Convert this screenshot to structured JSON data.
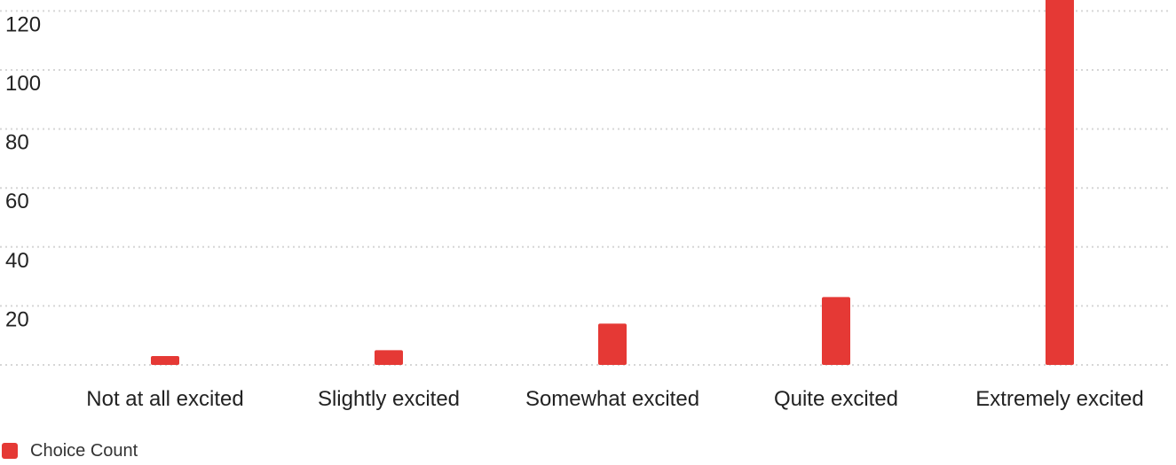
{
  "chart_data": {
    "type": "bar",
    "categories": [
      "Not at all excited",
      "Slightly excited",
      "Somewhat excited",
      "Quite excited",
      "Extremely excited"
    ],
    "series": [
      {
        "name": "Choice Count",
        "values": [
          3,
          5,
          14,
          23,
          125
        ],
        "color": "#e53935"
      }
    ],
    "yticks": [
      20,
      40,
      60,
      80,
      100,
      120
    ],
    "ylim": [
      0,
      128
    ],
    "grid": true,
    "legend_position": "bottom-left"
  },
  "legend": {
    "label": "Choice Count",
    "color": "#e53935"
  }
}
